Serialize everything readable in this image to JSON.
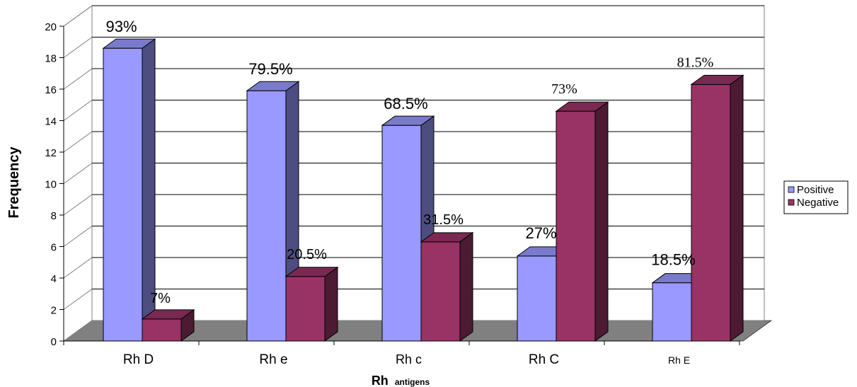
{
  "chart_data": {
    "type": "bar",
    "title": "",
    "xlabel_main": "Rh",
    "xlabel_sub": "antigens",
    "ylabel": "Frequency",
    "ylim": [
      0,
      20
    ],
    "yticks": [
      "0",
      "2",
      "4",
      "6",
      "8",
      "10",
      "12",
      "14",
      "16",
      "18",
      "20"
    ],
    "grid": true,
    "legend_position": "right",
    "categories": [
      "Rh D",
      "Rh e",
      "Rh c",
      "Rh C",
      "Rh E"
    ],
    "series": [
      {
        "name": "Positive",
        "values": [
          18.6,
          15.9,
          13.7,
          5.4,
          3.7
        ],
        "labels": [
          "93%",
          "79.5%",
          "68.5%",
          "27%",
          "18.5%"
        ],
        "color": "#9999ff"
      },
      {
        "name": "Negative",
        "values": [
          1.4,
          4.1,
          6.3,
          14.6,
          16.3
        ],
        "labels": [
          "7%",
          "20.5%",
          "31.5%",
          "73%",
          "81.5%"
        ],
        "color": "#993366"
      }
    ]
  }
}
